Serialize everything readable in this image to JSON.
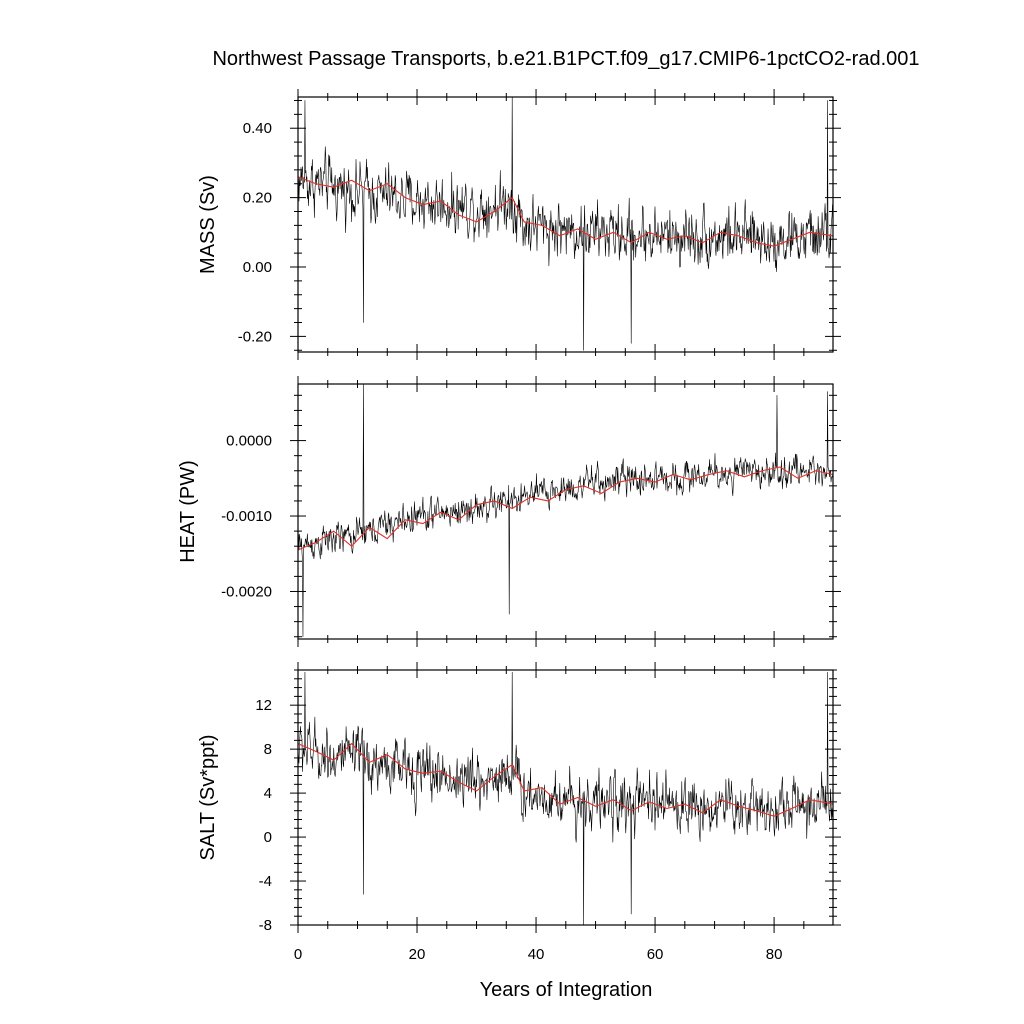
{
  "figure": {
    "title": "Northwest Passage Transports, b.e21.B1PCT.f09_g17.CMIP6-1pctCO2-rad.001",
    "xlabel": "Years of Integration"
  },
  "colors": {
    "raw_series": "#000000",
    "smoothed_series": "#e0302a",
    "frame": "#000000",
    "background": "#ffffff"
  },
  "chart_data": [
    {
      "type": "line",
      "ylabel": "MASS (Sv)",
      "xlim": [
        0,
        89.9
      ],
      "ylim": [
        -0.245,
        0.49
      ],
      "x_ticks": [
        0,
        20,
        40,
        60,
        80
      ],
      "x_tick_labels": [
        "0",
        "20",
        "40",
        "60",
        "80"
      ],
      "y_ticks": [
        -0.2,
        0.0,
        0.2,
        0.4
      ],
      "y_tick_labels": [
        "-0.20",
        "0.00",
        "0.20",
        "0.40"
      ],
      "x_tick_labels_shown": false,
      "grid": false,
      "legend": "none",
      "series": [
        {
          "role": "raw",
          "trend": [
            [
              0,
              0.25
            ],
            [
              10,
              0.22
            ],
            [
              20,
              0.19
            ],
            [
              30,
              0.17
            ],
            [
              36,
              0.19
            ],
            [
              38,
              0.12
            ],
            [
              50,
              0.1
            ],
            [
              60,
              0.09
            ],
            [
              70,
              0.09
            ],
            [
              80,
              0.08
            ],
            [
              89.9,
              0.09
            ]
          ],
          "noise": 0.11,
          "extremes": [
            [
              1.2,
              0.48
            ],
            [
              11,
              -0.16
            ],
            [
              36,
              0.49
            ],
            [
              48,
              -0.24
            ],
            [
              56,
              -0.22
            ],
            [
              89,
              0.48
            ]
          ]
        },
        {
          "role": "smoothed",
          "points": [
            [
              0,
              0.26
            ],
            [
              3,
              0.24
            ],
            [
              6,
              0.23
            ],
            [
              9,
              0.25
            ],
            [
              12,
              0.22
            ],
            [
              15,
              0.24
            ],
            [
              18,
              0.2
            ],
            [
              21,
              0.18
            ],
            [
              24,
              0.19
            ],
            [
              27,
              0.15
            ],
            [
              30,
              0.13
            ],
            [
              33,
              0.16
            ],
            [
              36,
              0.2
            ],
            [
              38,
              0.13
            ],
            [
              41,
              0.12
            ],
            [
              44,
              0.09
            ],
            [
              47,
              0.11
            ],
            [
              50,
              0.08
            ],
            [
              53,
              0.1
            ],
            [
              56,
              0.07
            ],
            [
              59,
              0.1
            ],
            [
              62,
              0.08
            ],
            [
              65,
              0.09
            ],
            [
              68,
              0.07
            ],
            [
              71,
              0.1
            ],
            [
              74,
              0.09
            ],
            [
              77,
              0.07
            ],
            [
              80,
              0.06
            ],
            [
              83,
              0.08
            ],
            [
              86,
              0.1
            ],
            [
              89.9,
              0.09
            ]
          ]
        }
      ]
    },
    {
      "type": "line",
      "ylabel": "HEAT (PW)",
      "xlim": [
        0,
        89.9
      ],
      "ylim": [
        -0.00263,
        0.00075
      ],
      "x_ticks": [
        0,
        20,
        40,
        60,
        80
      ],
      "x_tick_labels": [
        "0",
        "20",
        "40",
        "60",
        "80"
      ],
      "y_ticks": [
        -0.002,
        -0.001,
        0.0
      ],
      "y_tick_labels": [
        "-0.0020",
        "-0.0010",
        "0.0000"
      ],
      "x_tick_labels_shown": false,
      "grid": false,
      "legend": "none",
      "series": [
        {
          "role": "raw",
          "trend": [
            [
              0,
              -0.0014
            ],
            [
              10,
              -0.00125
            ],
            [
              20,
              -0.001
            ],
            [
              30,
              -0.0009
            ],
            [
              38,
              -0.00075
            ],
            [
              50,
              -0.00055
            ],
            [
              60,
              -0.0005
            ],
            [
              70,
              -0.00045
            ],
            [
              80,
              -0.0004
            ],
            [
              89.9,
              -0.0004
            ]
          ],
          "noise": 0.00028,
          "extremes": [
            [
              0.8,
              -0.0026
            ],
            [
              11,
              0.00075
            ],
            [
              35.5,
              -0.0023
            ],
            [
              80.5,
              0.0006
            ],
            [
              89,
              0.00065
            ]
          ]
        },
        {
          "role": "smoothed",
          "points": [
            [
              0,
              -0.00145
            ],
            [
              3,
              -0.00135
            ],
            [
              6,
              -0.0012
            ],
            [
              9,
              -0.0014
            ],
            [
              12,
              -0.00115
            ],
            [
              15,
              -0.0013
            ],
            [
              18,
              -0.00105
            ],
            [
              21,
              -0.0011
            ],
            [
              24,
              -0.00095
            ],
            [
              27,
              -0.00105
            ],
            [
              30,
              -0.00085
            ],
            [
              33,
              -0.0008
            ],
            [
              36,
              -0.0009
            ],
            [
              39,
              -0.00075
            ],
            [
              42,
              -0.0008
            ],
            [
              45,
              -0.00065
            ],
            [
              48,
              -0.0006
            ],
            [
              51,
              -0.0007
            ],
            [
              54,
              -0.00055
            ],
            [
              57,
              -0.0005
            ],
            [
              60,
              -0.00055
            ],
            [
              63,
              -0.00045
            ],
            [
              66,
              -0.00052
            ],
            [
              69,
              -0.00045
            ],
            [
              72,
              -0.0004
            ],
            [
              75,
              -0.00048
            ],
            [
              78,
              -0.0004
            ],
            [
              81,
              -0.00035
            ],
            [
              84,
              -0.0005
            ],
            [
              87,
              -0.0004
            ],
            [
              89.9,
              -0.00045
            ]
          ]
        }
      ]
    },
    {
      "type": "line",
      "ylabel": "SALT (Sv*ppt)",
      "xlim": [
        0,
        89.9
      ],
      "ylim": [
        -8,
        15.2
      ],
      "x_ticks": [
        0,
        20,
        40,
        60,
        80
      ],
      "x_tick_labels": [
        "0",
        "20",
        "40",
        "60",
        "80"
      ],
      "y_ticks": [
        -8,
        -4,
        0,
        4,
        8,
        12
      ],
      "y_tick_labels": [
        "-8",
        "-4",
        "0",
        "4",
        "8",
        "12"
      ],
      "x_tick_labels_shown": true,
      "grid": false,
      "legend": "none",
      "series": [
        {
          "role": "raw",
          "trend": [
            [
              0,
              8.0
            ],
            [
              10,
              7.0
            ],
            [
              20,
              6.0
            ],
            [
              30,
              5.0
            ],
            [
              36,
              6.0
            ],
            [
              38,
              4.0
            ],
            [
              50,
              3.2
            ],
            [
              60,
              3.0
            ],
            [
              70,
              2.8
            ],
            [
              80,
              2.8
            ],
            [
              89.9,
              3.0
            ]
          ],
          "noise": 3.4,
          "extremes": [
            [
              1.2,
              15.0
            ],
            [
              11,
              -5.2
            ],
            [
              36,
              15.0
            ],
            [
              48,
              -8.0
            ],
            [
              56,
              -7.0
            ],
            [
              89,
              15.0
            ]
          ]
        },
        {
          "role": "smoothed",
          "points": [
            [
              0,
              8.5
            ],
            [
              3,
              7.8
            ],
            [
              6,
              7.0
            ],
            [
              9,
              8.5
            ],
            [
              12,
              6.8
            ],
            [
              15,
              7.5
            ],
            [
              18,
              6.2
            ],
            [
              21,
              5.8
            ],
            [
              24,
              6.0
            ],
            [
              27,
              5.0
            ],
            [
              30,
              4.2
            ],
            [
              33,
              5.5
            ],
            [
              36,
              6.6
            ],
            [
              38,
              4.2
            ],
            [
              41,
              4.5
            ],
            [
              44,
              3.0
            ],
            [
              47,
              3.6
            ],
            [
              50,
              2.8
            ],
            [
              53,
              3.4
            ],
            [
              56,
              2.4
            ],
            [
              59,
              3.2
            ],
            [
              62,
              2.6
            ],
            [
              65,
              3.0
            ],
            [
              68,
              2.2
            ],
            [
              71,
              3.4
            ],
            [
              74,
              2.8
            ],
            [
              77,
              2.4
            ],
            [
              80,
              1.9
            ],
            [
              83,
              2.6
            ],
            [
              86,
              3.4
            ],
            [
              89.9,
              3.0
            ]
          ]
        }
      ]
    }
  ]
}
